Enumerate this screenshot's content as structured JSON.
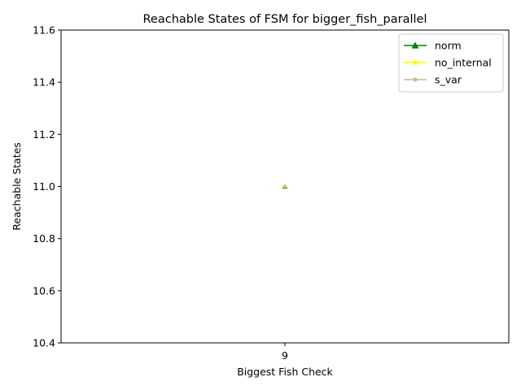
{
  "chart_data": {
    "type": "line",
    "title": "Reachable States of FSM for bigger_fish_parallel",
    "xlabel": "Biggest Fish Check",
    "ylabel": "Reachable States",
    "categories": [
      "9"
    ],
    "ylim": [
      10.4,
      11.6
    ],
    "yticks": [
      "10.4",
      "10.6",
      "10.8",
      "11.0",
      "11.2",
      "11.4",
      "11.6"
    ],
    "grid": false,
    "legend_position": "top-right",
    "series": [
      {
        "name": "norm",
        "values": [
          11.0
        ],
        "color": "#008000",
        "marker": "triangle"
      },
      {
        "name": "no_internal",
        "values": [
          11.0
        ],
        "color": "#ffff00",
        "marker": "star"
      },
      {
        "name": "s_var",
        "values": [
          11.0
        ],
        "color": "#d2b48c",
        "marker": "point"
      }
    ]
  }
}
